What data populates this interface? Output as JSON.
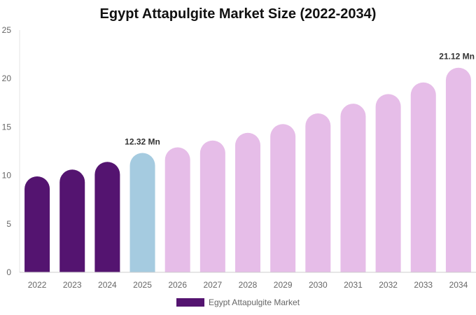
{
  "chart_data": {
    "type": "bar",
    "title": "Egypt Attapulgite Market Size (2022-2034)",
    "xlabel": "",
    "ylabel": "",
    "categories": [
      "2022",
      "2023",
      "2024",
      "2025",
      "2026",
      "2027",
      "2028",
      "2029",
      "2030",
      "2031",
      "2032",
      "2033",
      "2034"
    ],
    "series": [
      {
        "name": "Egypt Attapulgite Market",
        "values": [
          9.9,
          10.6,
          11.4,
          12.32,
          12.9,
          13.6,
          14.4,
          15.3,
          16.4,
          17.4,
          18.4,
          19.6,
          21.12
        ]
      }
    ],
    "ylim": [
      0,
      25
    ],
    "yticks": [
      "0",
      "5",
      "10",
      "15",
      "20",
      "25"
    ],
    "data_labels": [
      {
        "category": "2025",
        "text": "12.32 Mn"
      },
      {
        "category": "2034",
        "text": "21.12 Mn"
      }
    ],
    "colors": {
      "historical": "#541470",
      "current": "#a5cbe0",
      "forecast": "#e6bde8",
      "legend": "#541470"
    },
    "bar_color_groups": [
      "historical",
      "historical",
      "historical",
      "current",
      "forecast",
      "forecast",
      "forecast",
      "forecast",
      "forecast",
      "forecast",
      "forecast",
      "forecast",
      "forecast"
    ],
    "grid": false,
    "legend_position": "bottom"
  }
}
